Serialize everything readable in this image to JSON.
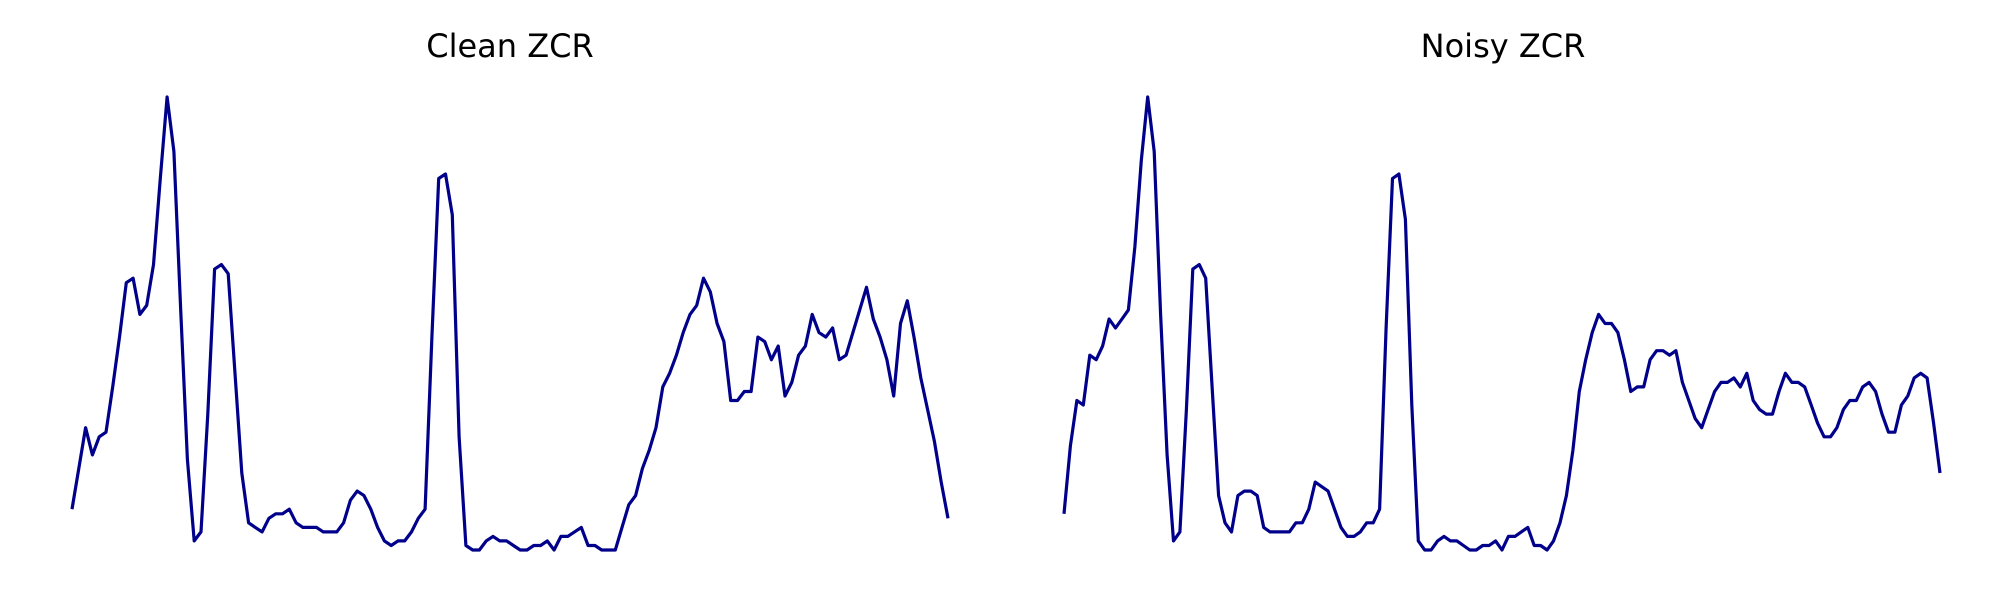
{
  "figure": {
    "line_color": "#00008b",
    "background": "#ffffff"
  },
  "chart_data": [
    {
      "type": "line",
      "title": "Clean ZCR",
      "axes_visible": false,
      "grid": false,
      "xlim": [
        0,
        124
      ],
      "ylim": [
        0,
        1.0
      ],
      "x_start": 0,
      "values": [
        0.09,
        0.18,
        0.27,
        0.21,
        0.25,
        0.26,
        0.36,
        0.47,
        0.59,
        0.6,
        0.52,
        0.54,
        0.63,
        0.82,
        1.0,
        0.88,
        0.53,
        0.2,
        0.02,
        0.04,
        0.3,
        0.62,
        0.63,
        0.61,
        0.39,
        0.17,
        0.06,
        0.05,
        0.04,
        0.07,
        0.08,
        0.08,
        0.09,
        0.06,
        0.05,
        0.05,
        0.05,
        0.04,
        0.04,
        0.04,
        0.06,
        0.11,
        0.13,
        0.12,
        0.09,
        0.05,
        0.02,
        0.01,
        0.02,
        0.02,
        0.04,
        0.07,
        0.09,
        0.47,
        0.82,
        0.83,
        0.74,
        0.25,
        0.01,
        0.0,
        0.0,
        0.02,
        0.03,
        0.02,
        0.02,
        0.01,
        0.0,
        0.0,
        0.01,
        0.01,
        0.02,
        0.0,
        0.03,
        0.03,
        0.04,
        0.05,
        0.01,
        0.01,
        0.0,
        0.0,
        0.0,
        0.05,
        0.1,
        0.12,
        0.18,
        0.22,
        0.27,
        0.36,
        0.39,
        0.43,
        0.48,
        0.52,
        0.54,
        0.6,
        0.57,
        0.5,
        0.46,
        0.33,
        0.33,
        0.35,
        0.35,
        0.47,
        0.46,
        0.42,
        0.45,
        0.34,
        0.37,
        0.43,
        0.45,
        0.52,
        0.48,
        0.47,
        0.49,
        0.42,
        0.43,
        0.48,
        0.53,
        0.58,
        0.51,
        0.47,
        0.42,
        0.34,
        0.5,
        0.55,
        0.47,
        0.38,
        0.31,
        0.24,
        0.15,
        0.07
      ]
    },
    {
      "type": "line",
      "title": "Noisy ZCR",
      "axes_visible": false,
      "grid": false,
      "xlim": [
        0,
        124
      ],
      "ylim": [
        0,
        1.0
      ],
      "x_start": 0,
      "values": [
        0.08,
        0.23,
        0.33,
        0.32,
        0.43,
        0.42,
        0.45,
        0.51,
        0.49,
        0.51,
        0.53,
        0.67,
        0.86,
        1.0,
        0.88,
        0.52,
        0.21,
        0.02,
        0.04,
        0.31,
        0.62,
        0.63,
        0.6,
        0.36,
        0.12,
        0.06,
        0.04,
        0.12,
        0.13,
        0.13,
        0.12,
        0.05,
        0.04,
        0.04,
        0.04,
        0.04,
        0.06,
        0.06,
        0.09,
        0.15,
        0.14,
        0.13,
        0.09,
        0.05,
        0.03,
        0.03,
        0.04,
        0.06,
        0.06,
        0.09,
        0.49,
        0.82,
        0.83,
        0.73,
        0.32,
        0.02,
        0.0,
        0.0,
        0.02,
        0.03,
        0.02,
        0.02,
        0.01,
        0.0,
        0.0,
        0.01,
        0.01,
        0.02,
        0.0,
        0.03,
        0.03,
        0.04,
        0.05,
        0.01,
        0.01,
        0.0,
        0.02,
        0.06,
        0.12,
        0.22,
        0.35,
        0.42,
        0.48,
        0.52,
        0.5,
        0.5,
        0.48,
        0.42,
        0.35,
        0.36,
        0.36,
        0.42,
        0.44,
        0.44,
        0.43,
        0.44,
        0.37,
        0.33,
        0.29,
        0.27,
        0.31,
        0.35,
        0.37,
        0.37,
        0.38,
        0.36,
        0.39,
        0.33,
        0.31,
        0.3,
        0.3,
        0.35,
        0.39,
        0.37,
        0.37,
        0.36,
        0.32,
        0.28,
        0.25,
        0.25,
        0.27,
        0.31,
        0.33,
        0.33,
        0.36,
        0.37,
        0.35,
        0.3,
        0.26,
        0.26,
        0.32,
        0.34,
        0.38,
        0.39,
        0.38,
        0.28,
        0.17
      ]
    }
  ]
}
